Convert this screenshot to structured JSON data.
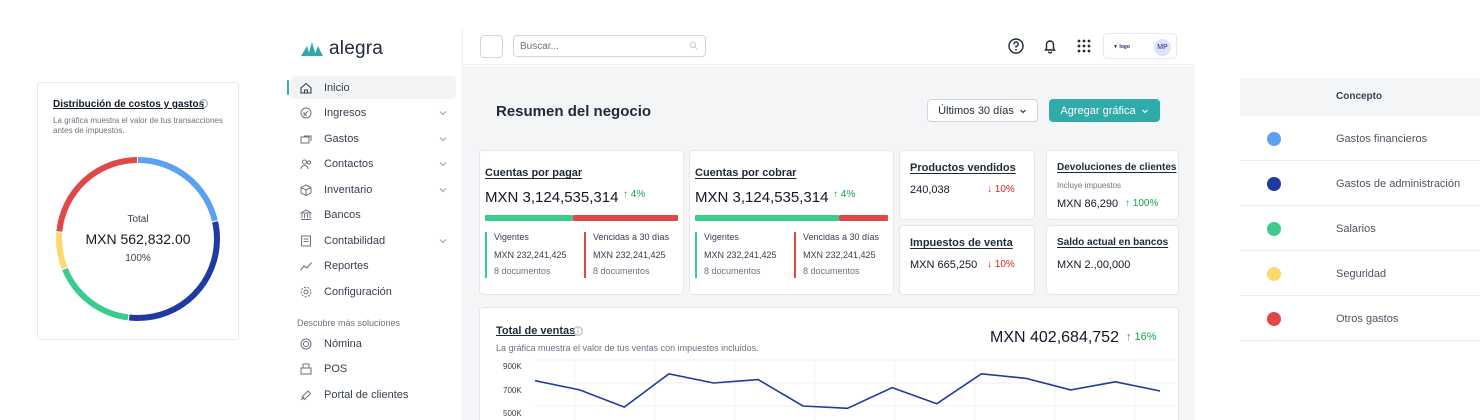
{
  "donut_card": {
    "title": "Distribución de costos y gastos",
    "subtitle": "La gráfica muestra el valor de tus transacciones antes de impuestos.",
    "total_label": "Total",
    "total_value": "MXN 562,832.00",
    "total_pct": "100%",
    "segments": [
      {
        "color": "#5aa2ef",
        "fraction": 0.215
      },
      {
        "color": "#1f3aa0",
        "fraction": 0.305
      },
      {
        "color": "#3ccb8c",
        "fraction": 0.17
      },
      {
        "color": "#fbd96a",
        "fraction": 0.075
      },
      {
        "color": "#e04848",
        "fraction": 0.235
      }
    ]
  },
  "app": {
    "logo_text": "alegra",
    "search": {
      "placeholder": "Buscar..."
    },
    "company_badge": "logo",
    "avatar": "MP"
  },
  "sidebar": {
    "items": [
      {
        "label": "Inicio",
        "icon": "home-icon",
        "active": true,
        "chevron": false
      },
      {
        "label": "Ingresos",
        "icon": "income-icon",
        "chevron": true
      },
      {
        "label": "Gastos",
        "icon": "expense-icon",
        "chevron": true
      },
      {
        "label": "Contactos",
        "icon": "contacts-icon",
        "chevron": true
      },
      {
        "label": "Inventario",
        "icon": "box-icon",
        "chevron": true
      },
      {
        "label": "Bancos",
        "icon": "bank-icon",
        "chevron": false
      },
      {
        "label": "Contabilidad",
        "icon": "ledger-icon",
        "chevron": true
      },
      {
        "label": "Reportes",
        "icon": "chart-line-icon",
        "chevron": false
      },
      {
        "label": "Configuración",
        "icon": "gear-icon",
        "chevron": false
      }
    ],
    "section_title": "Descubre más soluciones",
    "more_items": [
      {
        "label": "Nómina",
        "icon": "payroll-icon"
      },
      {
        "label": "POS",
        "icon": "pos-icon"
      },
      {
        "label": "Portal de clientes",
        "icon": "portal-icon"
      }
    ]
  },
  "dashboard": {
    "title": "Resumen del negocio",
    "period_label": "Últimos 30 días",
    "add_chart_label": "Agregar gráfica",
    "payables": {
      "title": "Cuentas por pagar",
      "amount": "MXN 3,124,535,314",
      "trend": "↑ 4%",
      "green_share": 0.45,
      "current_label": "Vigentes",
      "current_amount": "MXN 232,241,425",
      "current_docs": "8 documentos",
      "overdue_label": "Vencidas a 30 días",
      "overdue_amount": "MXN 232,241,425",
      "overdue_docs": "8 documentos"
    },
    "receivables": {
      "title": "Cuentas por cobrar",
      "amount": "MXN 3,124,535,314",
      "trend": "↑ 4%",
      "green_share": 0.74,
      "current_label": "Vigentes",
      "current_amount": "MXN 232,241,425",
      "current_docs": "8 documentos",
      "overdue_label": "Vencidas a 30 días",
      "overdue_amount": "MXN 232,241,425",
      "overdue_docs": "8 documentos"
    },
    "products_sold": {
      "title": "Productos vendidos",
      "value": "240,038",
      "trend": "↓ 10%"
    },
    "returns": {
      "title": "Devoluciones de clientes",
      "note": "Incluye impuestos",
      "value": "MXN 86,290",
      "trend": "↑ 100%"
    },
    "sales_tax": {
      "title": "Impuestos de venta",
      "value": "MXN 665,250",
      "trend": "↓ 10%"
    },
    "bank_balance": {
      "title": "Saldo actual en bancos",
      "value": "MXN 2.,00,000"
    },
    "sales": {
      "title": "Total de ventas",
      "subtitle": "La gráfica muestra el valor de tus ventas con impuestos incluidos.",
      "amount": "MXN 402,684,752",
      "trend": "↑ 16%"
    }
  },
  "chart_data": {
    "type": "line",
    "title": "Total de ventas",
    "y_ticks": [
      "900K",
      "700K",
      "500K"
    ],
    "ylim": [
      500000,
      900000
    ],
    "series": [
      {
        "color": "#1f3aa0",
        "values": [
          720000,
          640000,
          490000,
          780000,
          700000,
          730000,
          500000,
          480000,
          660000,
          520000,
          780000,
          740000,
          640000,
          710000,
          630000
        ]
      }
    ]
  },
  "concept_table": {
    "header": "Concepto",
    "rows": [
      {
        "label": "Gastos financieros",
        "color": "#5aa2ef"
      },
      {
        "label": "Gastos de administración",
        "color": "#1f3aa0"
      },
      {
        "label": "Salarios",
        "color": "#3ccb8c"
      },
      {
        "label": "Seguridad",
        "color": "#fbd96a"
      },
      {
        "label": "Otros gastos",
        "color": "#e04848"
      }
    ]
  }
}
